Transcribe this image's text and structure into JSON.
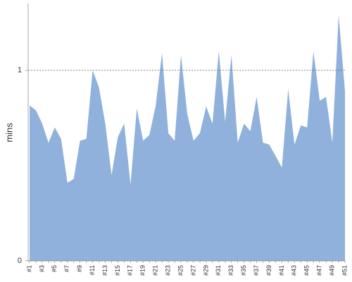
{
  "chart_data": {
    "type": "area",
    "y_label": "mins",
    "categories": [
      "#1",
      null,
      "#3",
      null,
      "#5",
      null,
      "#7",
      null,
      "#9",
      null,
      "#11",
      null,
      "#13",
      null,
      "#15",
      null,
      "#17",
      null,
      "#19",
      null,
      "#21",
      null,
      "#23",
      null,
      "#25",
      null,
      "#27",
      null,
      "#29",
      null,
      "#31",
      null,
      "#33",
      null,
      "#35",
      null,
      "#37",
      null,
      "#39",
      null,
      "#41",
      null,
      "#43",
      null,
      "#45",
      null,
      "#47",
      null,
      "#49",
      null,
      "#51"
    ],
    "values": [
      0.815,
      0.79,
      0.72,
      0.62,
      0.7,
      0.64,
      0.41,
      0.43,
      0.63,
      0.64,
      1.0,
      0.91,
      0.72,
      0.45,
      0.65,
      0.72,
      0.4,
      0.8,
      0.63,
      0.66,
      0.815,
      1.09,
      0.67,
      0.63,
      1.08,
      0.77,
      0.63,
      0.67,
      0.81,
      0.72,
      1.1,
      0.73,
      1.08,
      0.62,
      0.72,
      0.68,
      0.86,
      0.62,
      0.61,
      0.55,
      0.49,
      0.9,
      0.61,
      0.71,
      0.7,
      1.1,
      0.84,
      0.86,
      0.62,
      1.29,
      0.89
    ],
    "color": "#8fb1dc",
    "ylim": [
      0,
      1.35
    ],
    "yticks": [
      0,
      1
    ],
    "grid": true
  }
}
